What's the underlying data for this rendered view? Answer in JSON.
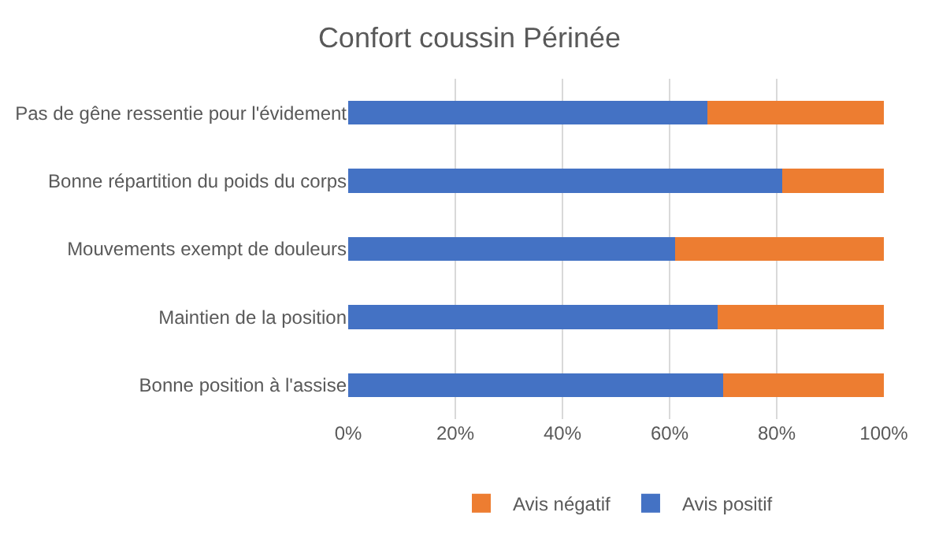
{
  "chart_data": {
    "type": "bar",
    "orientation": "horizontal",
    "stacked": true,
    "title": "Confort coussin Périnée",
    "categories": [
      "Pas de gêne ressentie pour l'évidement",
      "Bonne répartition du poids du corps",
      "Mouvements exempt de douleurs",
      "Maintien de la position",
      "Bonne position à l'assise"
    ],
    "series": [
      {
        "name": "Avis positif",
        "color": "#4472c4",
        "values": [
          67,
          81,
          61,
          69,
          70
        ]
      },
      {
        "name": "Avis négatif",
        "color": "#ed7d31",
        "values": [
          33,
          19,
          39,
          31,
          30
        ]
      }
    ],
    "xlim": [
      0,
      100
    ],
    "xticks": [
      {
        "value": 0,
        "label": "0%"
      },
      {
        "value": 20,
        "label": "20%"
      },
      {
        "value": 40,
        "label": "40%"
      },
      {
        "value": 60,
        "label": "60%"
      },
      {
        "value": 80,
        "label": "80%"
      },
      {
        "value": 100,
        "label": "100%"
      }
    ],
    "grid": "x",
    "legend": "bottom"
  }
}
